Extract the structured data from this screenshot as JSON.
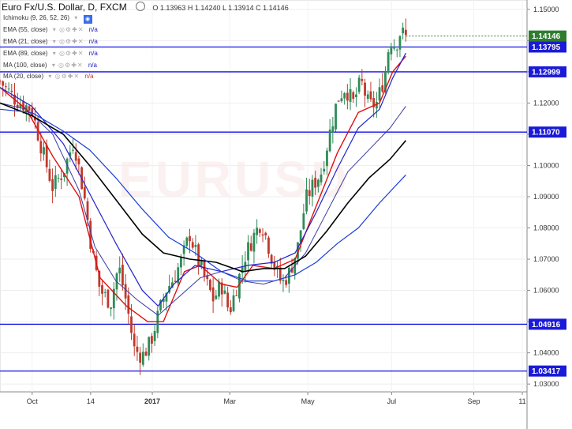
{
  "header": {
    "instrument": "Euro Fx/U.S. Dollar, D, FXCM",
    "ohlc": "O 1.13963 H 1.14240 L 1.13914 C 1.14146"
  },
  "indicators": [
    {
      "label": "Ichimoku (9, 26, 52, 26)",
      "value": ""
    },
    {
      "label": "EMA (55, close)",
      "value": "n/a"
    },
    {
      "label": "EMA (21, close)",
      "value": "n/a"
    },
    {
      "label": "EMA (89, close)",
      "value": "n/a"
    },
    {
      "label": "MA (100, close)",
      "value": "n/a"
    },
    {
      "label": "MA (20, close)",
      "value": "n/a"
    }
  ],
  "colors": {
    "hline": "#1010e6",
    "tag_level": "#1a1ad8",
    "tag_price": "#2f7d2f",
    "up_candle": "#2e8b57",
    "down_candle": "#c0392b",
    "ema21": "#e01010",
    "ema55": "#2222cc",
    "ema89": "#000000",
    "ma100": "#1a3fd8",
    "ma20": "#3a3aa0"
  },
  "chart_data": {
    "type": "line",
    "title": "Euro Fx/U.S. Dollar, D, FXCM",
    "ylim": [
      1.0275,
      1.153
    ],
    "y_ticks": [
      1.15,
      1.14,
      1.13,
      1.12,
      1.11,
      1.1,
      1.09,
      1.08,
      1.07,
      1.06,
      1.05,
      1.04,
      1.03
    ],
    "y_tick_labels": [
      "1.15000",
      "1.14000",
      "1.13000",
      "1.12000",
      "1.11000",
      "1.10000",
      "1.09000",
      "1.08000",
      "1.07000",
      "1.06000",
      "1.05000",
      "1.04000",
      "1.03000"
    ],
    "x_ticks": [
      {
        "label": "Oct",
        "t": 0.061
      },
      {
        "label": "14",
        "t": 0.172
      },
      {
        "label": "2017",
        "t": 0.289
      },
      {
        "label": "Mar",
        "t": 0.436
      },
      {
        "label": "May",
        "t": 0.584
      },
      {
        "label": "Jul",
        "t": 0.743
      },
      {
        "label": "Sep",
        "t": 0.899
      },
      {
        "label": "11",
        "t": 0.991
      }
    ],
    "horizontal_levels": [
      {
        "value": 1.13795,
        "label": "1.13795"
      },
      {
        "value": 1.12999,
        "label": "1.12999"
      },
      {
        "value": 1.1107,
        "label": "1.11070"
      },
      {
        "value": 1.04916,
        "label": "1.04916"
      },
      {
        "value": 1.03417,
        "label": "1.03417"
      }
    ],
    "current_price": {
      "value": 1.14146,
      "label": "1.14146"
    },
    "price_path": [
      [
        0.0,
        1.127
      ],
      [
        0.03,
        1.121
      ],
      [
        0.06,
        1.118
      ],
      [
        0.08,
        1.105
      ],
      [
        0.1,
        1.093
      ],
      [
        0.12,
        1.098
      ],
      [
        0.14,
        1.108
      ],
      [
        0.16,
        1.09
      ],
      [
        0.175,
        1.072
      ],
      [
        0.19,
        1.06
      ],
      [
        0.21,
        1.056
      ],
      [
        0.225,
        1.068
      ],
      [
        0.24,
        1.056
      ],
      [
        0.255,
        1.041
      ],
      [
        0.27,
        1.039
      ],
      [
        0.285,
        1.043
      ],
      [
        0.3,
        1.052
      ],
      [
        0.315,
        1.06
      ],
      [
        0.33,
        1.064
      ],
      [
        0.345,
        1.07
      ],
      [
        0.36,
        1.078
      ],
      [
        0.375,
        1.07
      ],
      [
        0.39,
        1.063
      ],
      [
        0.405,
        1.057
      ],
      [
        0.42,
        1.062
      ],
      [
        0.435,
        1.053
      ],
      [
        0.45,
        1.062
      ],
      [
        0.465,
        1.071
      ],
      [
        0.48,
        1.077
      ],
      [
        0.495,
        1.082
      ],
      [
        0.505,
        1.077
      ],
      [
        0.52,
        1.068
      ],
      [
        0.535,
        1.062
      ],
      [
        0.55,
        1.066
      ],
      [
        0.565,
        1.074
      ],
      [
        0.58,
        1.089
      ],
      [
        0.595,
        1.094
      ],
      [
        0.61,
        1.098
      ],
      [
        0.625,
        1.11
      ],
      [
        0.64,
        1.121
      ],
      [
        0.655,
        1.125
      ],
      [
        0.67,
        1.12
      ],
      [
        0.685,
        1.127
      ],
      [
        0.7,
        1.119
      ],
      [
        0.715,
        1.12
      ],
      [
        0.73,
        1.129
      ],
      [
        0.74,
        1.141
      ],
      [
        0.75,
        1.138
      ],
      [
        0.76,
        1.143
      ],
      [
        0.77,
        1.141
      ]
    ],
    "series": [
      {
        "name": "EMA (21, close)",
        "points": [
          [
            0.0,
            1.125
          ],
          [
            0.05,
            1.118
          ],
          [
            0.1,
            1.103
          ],
          [
            0.15,
            1.09
          ],
          [
            0.19,
            1.064
          ],
          [
            0.24,
            1.055
          ],
          [
            0.28,
            1.05
          ],
          [
            0.31,
            1.05
          ],
          [
            0.35,
            1.066
          ],
          [
            0.38,
            1.068
          ],
          [
            0.42,
            1.062
          ],
          [
            0.45,
            1.061
          ],
          [
            0.48,
            1.068
          ],
          [
            0.52,
            1.067
          ],
          [
            0.56,
            1.07
          ],
          [
            0.6,
            1.087
          ],
          [
            0.64,
            1.104
          ],
          [
            0.68,
            1.117
          ],
          [
            0.72,
            1.12
          ],
          [
            0.745,
            1.13
          ],
          [
            0.77,
            1.135
          ]
        ]
      },
      {
        "name": "EMA (55, close)",
        "points": [
          [
            0.0,
            1.125
          ],
          [
            0.06,
            1.119
          ],
          [
            0.12,
            1.107
          ],
          [
            0.17,
            1.091
          ],
          [
            0.22,
            1.075
          ],
          [
            0.27,
            1.06
          ],
          [
            0.3,
            1.055
          ],
          [
            0.33,
            1.062
          ],
          [
            0.37,
            1.068
          ],
          [
            0.42,
            1.066
          ],
          [
            0.47,
            1.068
          ],
          [
            0.52,
            1.069
          ],
          [
            0.56,
            1.072
          ],
          [
            0.6,
            1.085
          ],
          [
            0.64,
            1.099
          ],
          [
            0.68,
            1.112
          ],
          [
            0.72,
            1.118
          ],
          [
            0.745,
            1.128
          ],
          [
            0.77,
            1.136
          ]
        ]
      },
      {
        "name": "MA (20, close)",
        "points": [
          [
            0.0,
            1.12
          ],
          [
            0.05,
            1.118
          ],
          [
            0.1,
            1.11
          ],
          [
            0.15,
            1.092
          ],
          [
            0.18,
            1.074
          ],
          [
            0.22,
            1.063
          ],
          [
            0.26,
            1.057
          ],
          [
            0.3,
            1.052
          ],
          [
            0.34,
            1.058
          ],
          [
            0.38,
            1.064
          ],
          [
            0.42,
            1.066
          ],
          [
            0.46,
            1.063
          ],
          [
            0.5,
            1.062
          ],
          [
            0.54,
            1.064
          ],
          [
            0.58,
            1.072
          ],
          [
            0.62,
            1.085
          ],
          [
            0.66,
            1.098
          ],
          [
            0.7,
            1.105
          ],
          [
            0.74,
            1.112
          ],
          [
            0.77,
            1.119
          ]
        ]
      },
      {
        "name": "EMA (89, close)",
        "points": [
          [
            0.0,
            1.12
          ],
          [
            0.06,
            1.116
          ],
          [
            0.12,
            1.11
          ],
          [
            0.17,
            1.1
          ],
          [
            0.22,
            1.089
          ],
          [
            0.27,
            1.078
          ],
          [
            0.31,
            1.072
          ],
          [
            0.36,
            1.07
          ],
          [
            0.41,
            1.069
          ],
          [
            0.46,
            1.066
          ],
          [
            0.5,
            1.067
          ],
          [
            0.54,
            1.067
          ],
          [
            0.58,
            1.071
          ],
          [
            0.62,
            1.079
          ],
          [
            0.66,
            1.088
          ],
          [
            0.7,
            1.096
          ],
          [
            0.74,
            1.102
          ],
          [
            0.77,
            1.108
          ]
        ]
      },
      {
        "name": "MA (100, close)",
        "points": [
          [
            0.0,
            1.118
          ],
          [
            0.06,
            1.117
          ],
          [
            0.12,
            1.111
          ],
          [
            0.17,
            1.105
          ],
          [
            0.22,
            1.096
          ],
          [
            0.27,
            1.086
          ],
          [
            0.32,
            1.077
          ],
          [
            0.37,
            1.072
          ],
          [
            0.42,
            1.066
          ],
          [
            0.47,
            1.063
          ],
          [
            0.52,
            1.063
          ],
          [
            0.56,
            1.065
          ],
          [
            0.6,
            1.069
          ],
          [
            0.64,
            1.075
          ],
          [
            0.68,
            1.08
          ],
          [
            0.72,
            1.088
          ],
          [
            0.77,
            1.097
          ]
        ]
      }
    ],
    "grid": true
  }
}
